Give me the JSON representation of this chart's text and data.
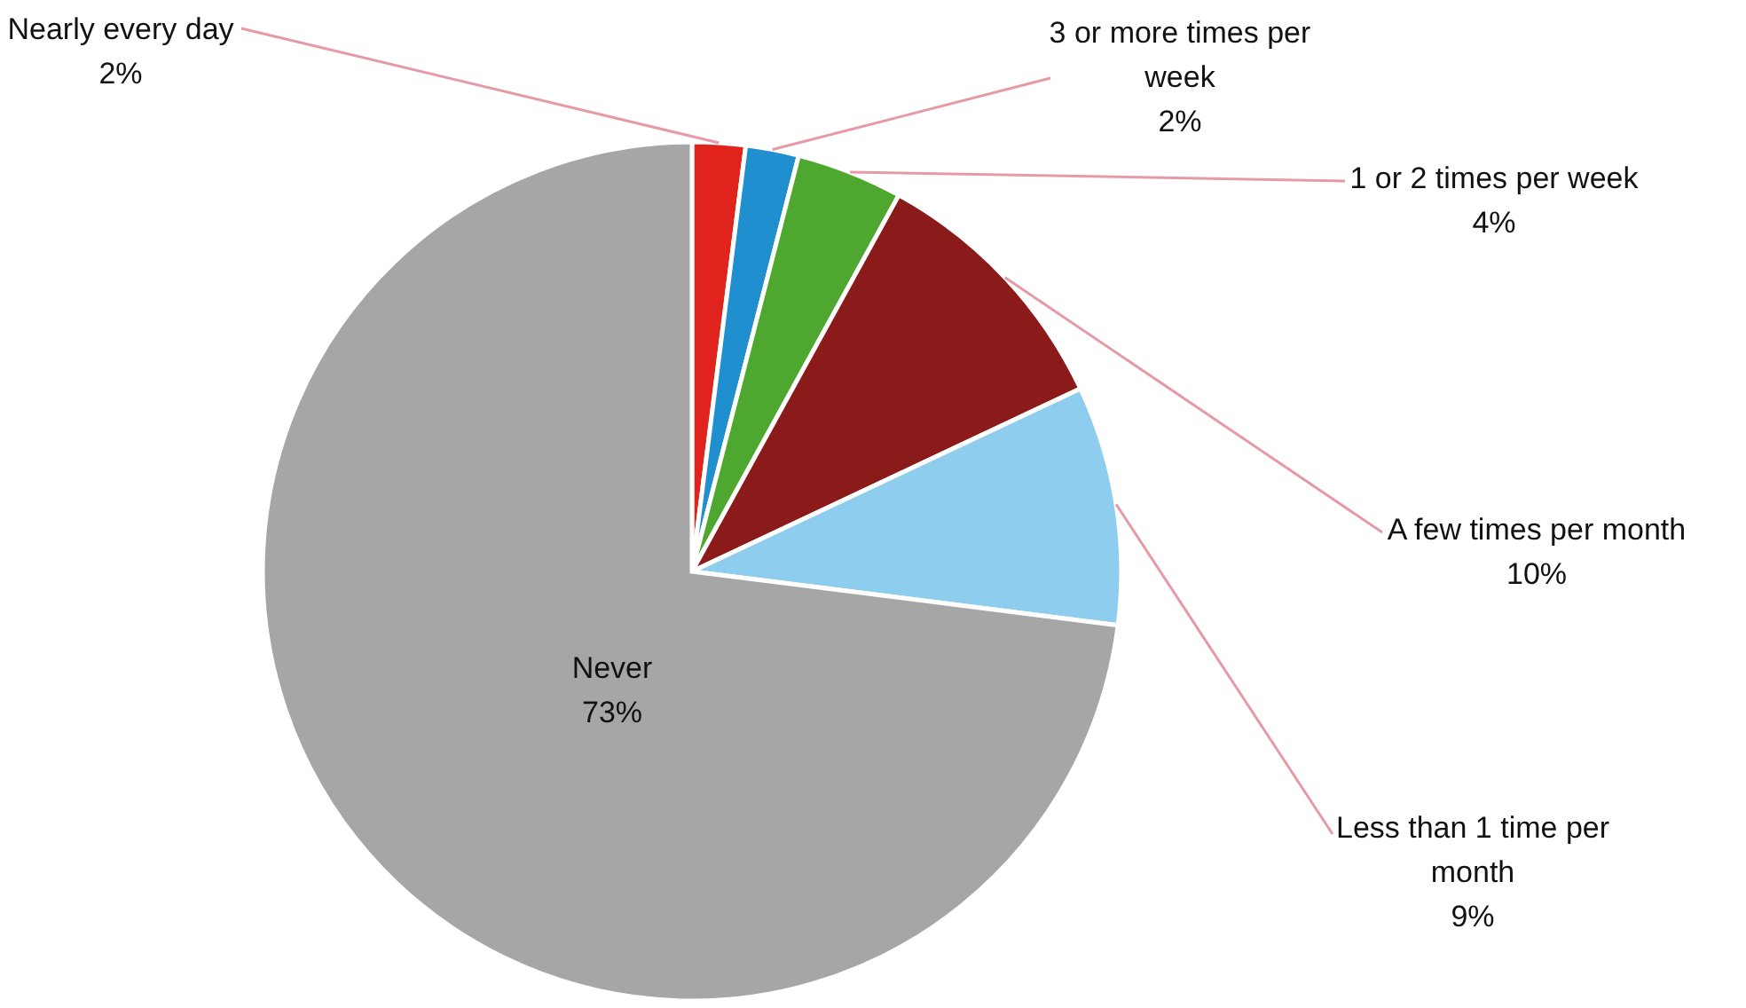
{
  "chart_data": {
    "type": "pie",
    "categories": [
      "Nearly every day",
      "3 or more times per week",
      "1 or 2 times per week",
      "A few times per month",
      "Less than 1 time per month",
      "Never"
    ],
    "values": [
      2,
      2,
      4,
      10,
      9,
      73
    ],
    "value_labels": [
      "2%",
      "2%",
      "4%",
      "10%",
      "9%",
      "73%"
    ],
    "colors": [
      "#e0231c",
      "#1f8fd0",
      "#4ea72e",
      "#8b1a1a",
      "#8fcdef",
      "#a6a6a6"
    ]
  }
}
